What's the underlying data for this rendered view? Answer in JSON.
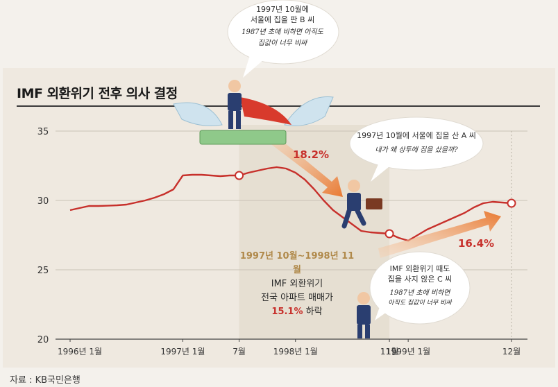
{
  "title": "IMF 외환위기 전후 의사 결정",
  "source": "자료 : KB국민은행",
  "colors": {
    "line": "#c7302b",
    "arrow": "#e97a33",
    "period_band": "#e6dfd2"
  },
  "chart_data": {
    "type": "line",
    "title": "IMF 외환위기 전후 의사 결정",
    "ylim": [
      20,
      35
    ],
    "yticks": [
      "35",
      "30",
      "25",
      "20"
    ],
    "xticks": [
      "1996년 1월",
      "1997년 1월",
      "7월",
      "1998년 1월",
      "11월",
      "1999년 1월",
      "12월"
    ],
    "xtick_pos": [
      0,
      12,
      18,
      24,
      34,
      36,
      47
    ],
    "grid": true,
    "series": [
      {
        "x": [
          0,
          1,
          2,
          3,
          4,
          5,
          6,
          7,
          8,
          9,
          10,
          11,
          12,
          13,
          14,
          15,
          16,
          17,
          18,
          19,
          20,
          21,
          22,
          23,
          24,
          25,
          26,
          27,
          28,
          29,
          30,
          31,
          32,
          33,
          34,
          35,
          36,
          37,
          38,
          39,
          40,
          41,
          42,
          43,
          44,
          45,
          46,
          47
        ],
        "y": [
          29.3,
          29.45,
          29.6,
          29.6,
          29.62,
          29.65,
          29.7,
          29.85,
          30.0,
          30.2,
          30.45,
          30.8,
          31.8,
          31.85,
          31.85,
          31.8,
          31.75,
          31.8,
          31.8,
          32.0,
          32.15,
          32.3,
          32.4,
          32.3,
          32.0,
          31.5,
          30.8,
          30.0,
          29.3,
          28.8,
          28.3,
          27.8,
          27.7,
          27.65,
          27.6,
          27.3,
          27.1,
          27.5,
          27.9,
          28.2,
          28.5,
          28.8,
          29.1,
          29.5,
          29.8,
          29.9,
          29.85,
          29.8
        ]
      }
    ],
    "markers": [
      {
        "x": 18,
        "y": 31.8
      },
      {
        "x": 34,
        "y": 27.6
      },
      {
        "x": 47,
        "y": 29.8
      }
    ],
    "period_band": [
      18,
      34
    ],
    "annotations": {
      "drop_pct": "18.2%",
      "rise_pct": "16.4%"
    }
  },
  "period_box": {
    "range": "1997년 10월~1998년 11월",
    "line1": "IMF 외환위기",
    "line2": "전국 아파트 매매가",
    "pct": "15.1%",
    "suffix": "하락"
  },
  "bubbles": {
    "b_seller": {
      "line1": "1997년 10월에",
      "line2": "서울에 집을 판 B 씨",
      "hand1": "1987년 초에 비하면 아직도",
      "hand2": "집값이 너무 비싸"
    },
    "a_buyer": {
      "line1": "1997년 10월에 서울에 집을 산 A 씨",
      "hand1": "내가 왜 상투에 집을 샀을까?"
    },
    "c_waiter": {
      "line1": "IMF 외환위기 때도",
      "line2": "집을 사지 않은 C 씨",
      "hand1": "1987년 초에 비하면",
      "hand2": "아직도 집값이 너무 비싸"
    }
  }
}
